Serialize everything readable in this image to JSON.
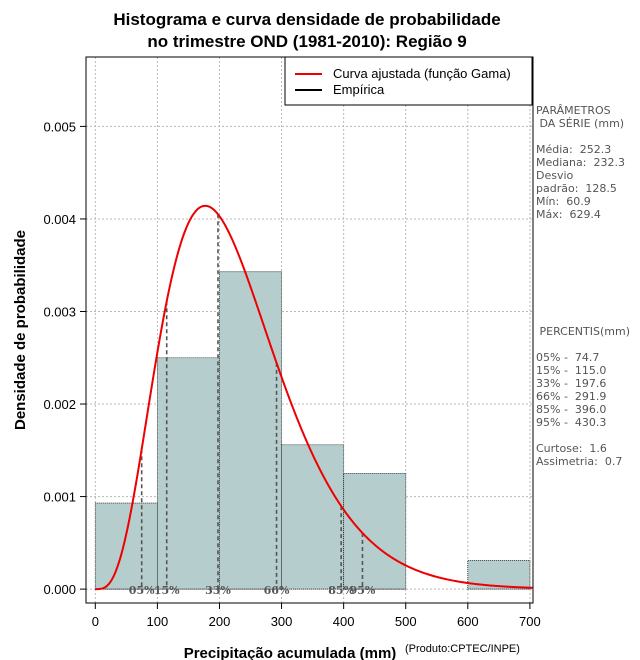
{
  "chart_data": {
    "type": "bar",
    "title": [
      "Histograma e curva densidade de probabilidade",
      "no trimestre OND (1981-2010): Região 9"
    ],
    "xlabel": "Precipitação acumulada (mm)",
    "credit": "(Produto:CPTEC/INPE)",
    "ylabel": "Densidade de probabilidade",
    "xlim": [
      -15,
      705
    ],
    "ylim": [
      -0.00015,
      0.00575
    ],
    "x_ticks": [
      0,
      100,
      200,
      300,
      400,
      500,
      600,
      700
    ],
    "y_ticks": [
      0.0,
      0.001,
      0.002,
      0.003,
      0.004,
      0.005
    ],
    "y_tick_labels": [
      "0.000",
      "0.001",
      "0.002",
      "0.003",
      "0.004",
      "0.005"
    ],
    "grid": true,
    "bars": [
      {
        "from": 0,
        "to": 100,
        "density": 0.00093
      },
      {
        "from": 100,
        "to": 200,
        "density": 0.0025
      },
      {
        "from": 200,
        "to": 300,
        "density": 0.00343
      },
      {
        "from": 300,
        "to": 400,
        "density": 0.00156
      },
      {
        "from": 400,
        "to": 500,
        "density": 0.00125
      },
      {
        "from": 500,
        "to": 600,
        "density": 0.0
      },
      {
        "from": 600,
        "to": 700,
        "density": 0.00031
      }
    ],
    "gamma_fit": {
      "shape": 4.54,
      "scale": 50.0
    },
    "legend": [
      {
        "label": "Curva ajustada (função Gama)",
        "color": "#ee0000"
      },
      {
        "label": "Empírica",
        "color": "#000000"
      }
    ],
    "percentile_markers": [
      {
        "label": "05%",
        "value": 74.7
      },
      {
        "label": "15%",
        "value": 115.0
      },
      {
        "label": "33%",
        "value": 197.6
      },
      {
        "label": "66%",
        "value": 291.9
      },
      {
        "label": "85%",
        "value": 396.0
      },
      {
        "label": "95%",
        "value": 430.3
      }
    ],
    "colors": {
      "bar_fill": "#b5cecd",
      "curve": "#ee0000",
      "marker": "#555555"
    }
  },
  "side_panel": {
    "params_title": [
      "PARÂMETROS",
      " DA SÉRIE (mm)"
    ],
    "params": [
      "Média:  252.3",
      "Mediana:  232.3",
      "Desvio",
      "padrão:  128.5",
      "Mín:  60.9",
      "Máx:  629.4"
    ],
    "percentis_title": " PERCENTIS(mm)",
    "percentis": [
      "05% -  74.7",
      "15% -  115.0",
      "33% -  197.6",
      "66% -  291.9",
      "85% -  396.0",
      "95% -  430.3"
    ],
    "stats": [
      "Curtose:  1.6",
      "Assimetria:  0.7"
    ]
  }
}
